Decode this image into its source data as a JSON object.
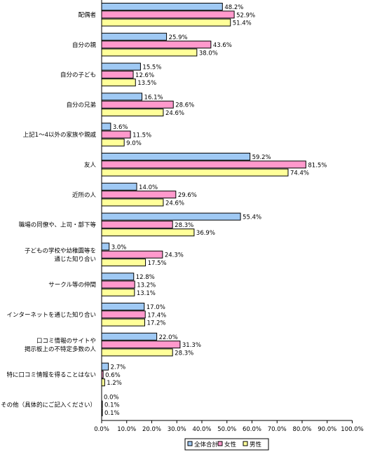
{
  "chart_data": {
    "type": "bar",
    "orientation": "horizontal",
    "categories": [
      [
        "配偶者"
      ],
      [
        "自分の親"
      ],
      [
        "自分の子ども"
      ],
      [
        "自分の兄弟"
      ],
      [
        "上記1～4以外の家族や親戚"
      ],
      [
        "友人"
      ],
      [
        "近所の人"
      ],
      [
        "職場の同僚や、上司・部下等"
      ],
      [
        "子どもの学校や幼稚園等を",
        "通じた知り合い"
      ],
      [
        "サークル等の仲間"
      ],
      [
        "インターネットを通じた知り合い"
      ],
      [
        "口コミ情報のサイトや",
        "掲示板上の不特定多数の人"
      ],
      [
        "特に口コミ情報を得ることはない"
      ],
      [
        "その他（具体的にご記入ください）"
      ]
    ],
    "series": [
      {
        "name": "全体合計",
        "color": "#9fc9f4",
        "values": [
          48.2,
          25.9,
          15.5,
          16.1,
          3.6,
          59.2,
          14.0,
          55.4,
          3.0,
          12.8,
          17.0,
          22.0,
          2.7,
          0.0
        ],
        "labels": [
          "48.2%",
          "25.9%",
          "15.5%",
          "16.1%",
          "3.6%",
          "59.2%",
          "14.0%",
          "55.4%",
          "3.0%",
          "12.8%",
          "17.0%",
          "22.0%",
          "2.7%",
          "0.0%"
        ]
      },
      {
        "name": "女性",
        "color": "#ff99cc",
        "values": [
          52.9,
          43.6,
          12.6,
          28.6,
          11.5,
          81.5,
          29.6,
          28.3,
          24.3,
          13.2,
          17.4,
          31.3,
          0.6,
          0.1
        ],
        "labels": [
          "52.9%",
          "43.6%",
          "12.6%",
          "28.6%",
          "11.5%",
          "81.5%",
          "29.6%",
          "28.3%",
          "24.3%",
          "13.2%",
          "17.4%",
          "31.3%",
          "0.6%",
          "0.1%"
        ]
      },
      {
        "name": "男性",
        "color": "#ffff99",
        "values": [
          51.4,
          38.0,
          13.5,
          24.6,
          9.0,
          74.4,
          24.6,
          36.9,
          17.5,
          13.1,
          17.2,
          28.3,
          1.2,
          0.1
        ],
        "labels": [
          "51.4%",
          "38.0%",
          "13.5%",
          "24.6%",
          "9.0%",
          "74.4%",
          "24.6%",
          "36.9%",
          "17.5%",
          "13.1%",
          "17.2%",
          "28.3%",
          "1.2%",
          "0.1%"
        ]
      }
    ],
    "xlim": [
      0,
      100
    ],
    "xticks": [
      "0.0%",
      "10.0%",
      "20.0%",
      "30.0%",
      "40.0%",
      "50.0%",
      "60.0%",
      "70.0%",
      "80.0%",
      "90.0%",
      "100.0%"
    ],
    "grid": false,
    "legend": "bottom-right",
    "legend_order": [
      "全体合計",
      "女性",
      "男性"
    ]
  }
}
